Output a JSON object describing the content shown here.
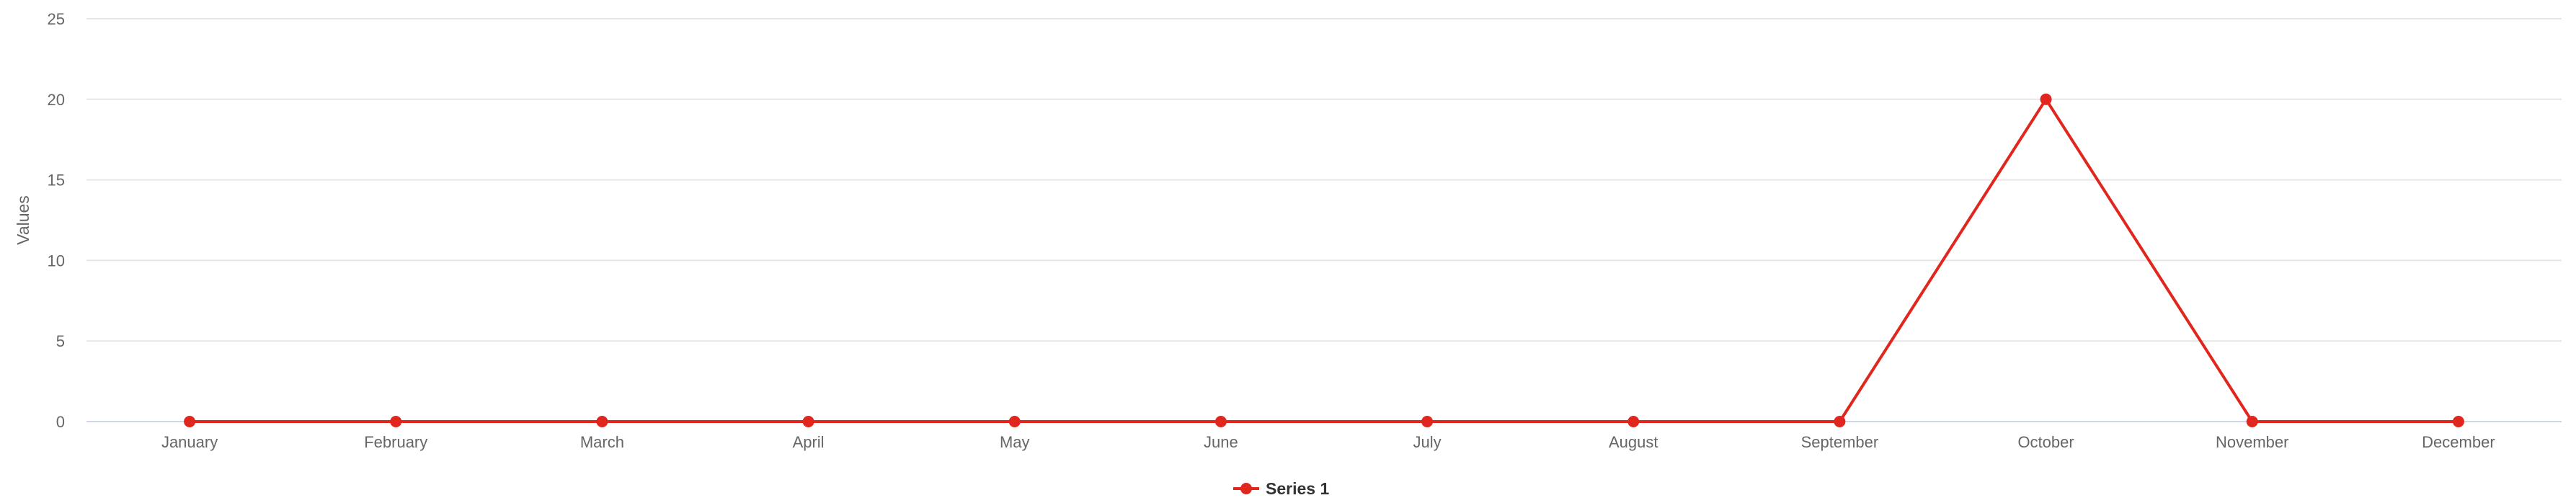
{
  "chart_data": {
    "type": "line",
    "title": "",
    "xlabel": "",
    "ylabel": "Values",
    "categories": [
      "January",
      "February",
      "March",
      "April",
      "May",
      "June",
      "July",
      "August",
      "September",
      "October",
      "November",
      "December"
    ],
    "series": [
      {
        "name": "Series 1",
        "values": [
          0,
          0,
          0,
          0,
          0,
          0,
          0,
          0,
          0,
          20,
          0,
          0
        ],
        "color": "#e0261d"
      }
    ],
    "ylim": [
      0,
      25
    ],
    "yticks": [
      "0",
      "5",
      "10",
      "15",
      "20",
      "25"
    ],
    "grid": true,
    "legend_position": "bottom-center"
  }
}
